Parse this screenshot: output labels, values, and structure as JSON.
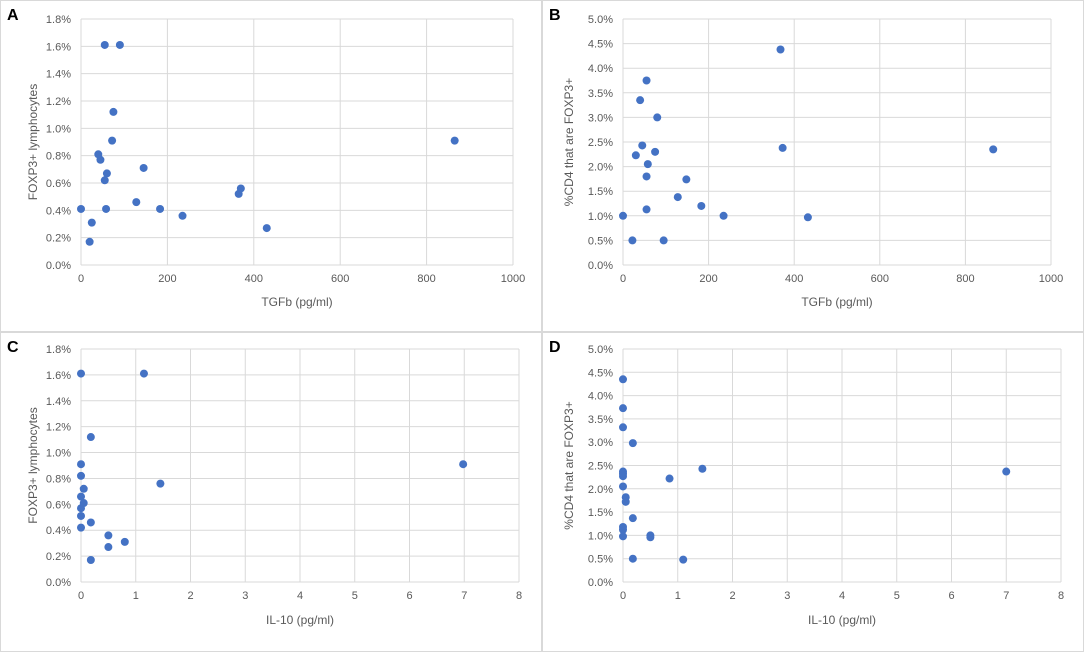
{
  "colors": {
    "marker": "#4472c4",
    "grid": "#d9d9d9",
    "text": "#595959"
  },
  "panels": [
    {
      "letter": "A"
    },
    {
      "letter": "B"
    },
    {
      "letter": "C"
    },
    {
      "letter": "D"
    }
  ],
  "chart_data": [
    {
      "type": "scatter",
      "panel": "A",
      "xlabel": "TGFb (pg/ml)",
      "ylabel": "FOXP3+ lymphocytes",
      "xlim": [
        0,
        1000
      ],
      "ylim": [
        0,
        1.8
      ],
      "xticks": [
        0,
        200,
        400,
        600,
        800,
        1000
      ],
      "xtick_labels": [
        "0",
        "200",
        "400",
        "600",
        "800",
        "1000"
      ],
      "yticks": [
        0,
        0.2,
        0.4,
        0.6,
        0.8,
        1.0,
        1.2,
        1.4,
        1.6,
        1.8
      ],
      "ytick_labels": [
        "0.0%",
        "0.2%",
        "0.4%",
        "0.6%",
        "0.8%",
        "1.0%",
        "1.2%",
        "1.4%",
        "1.6%",
        "1.8%"
      ],
      "points": [
        [
          0,
          0.41
        ],
        [
          20,
          0.17
        ],
        [
          25,
          0.31
        ],
        [
          40,
          0.81
        ],
        [
          45,
          0.77
        ],
        [
          55,
          1.61
        ],
        [
          55,
          0.62
        ],
        [
          58,
          0.41
        ],
        [
          60,
          0.67
        ],
        [
          72,
          0.91
        ],
        [
          75,
          1.12
        ],
        [
          90,
          1.61
        ],
        [
          128,
          0.46
        ],
        [
          145,
          0.71
        ],
        [
          183,
          0.41
        ],
        [
          235,
          0.36
        ],
        [
          365,
          0.52
        ],
        [
          370,
          0.56
        ],
        [
          430,
          0.27
        ],
        [
          865,
          0.91
        ]
      ]
    },
    {
      "type": "scatter",
      "panel": "B",
      "xlabel": "TGFb (pg/ml)",
      "ylabel": "%CD4 that are FOXP3+",
      "xlim": [
        0,
        1000
      ],
      "ylim": [
        0,
        5.0
      ],
      "xticks": [
        0,
        200,
        400,
        600,
        800,
        1000
      ],
      "xtick_labels": [
        "0",
        "200",
        "400",
        "600",
        "800",
        "1000"
      ],
      "yticks": [
        0,
        0.5,
        1.0,
        1.5,
        2.0,
        2.5,
        3.0,
        3.5,
        4.0,
        4.5,
        5.0
      ],
      "ytick_labels": [
        "0.0%",
        "0.5%",
        "1.0%",
        "1.5%",
        "2.0%",
        "2.5%",
        "3.0%",
        "3.5%",
        "4.0%",
        "4.5%",
        "5.0%"
      ],
      "points": [
        [
          0,
          1.0
        ],
        [
          22,
          0.5
        ],
        [
          30,
          2.23
        ],
        [
          40,
          3.35
        ],
        [
          45,
          2.43
        ],
        [
          55,
          3.75
        ],
        [
          55,
          1.8
        ],
        [
          55,
          1.13
        ],
        [
          58,
          2.05
        ],
        [
          75,
          2.3
        ],
        [
          80,
          3.0
        ],
        [
          95,
          0.5
        ],
        [
          128,
          1.38
        ],
        [
          148,
          1.74
        ],
        [
          183,
          1.2
        ],
        [
          235,
          1.0
        ],
        [
          368,
          4.38
        ],
        [
          373,
          2.38
        ],
        [
          432,
          0.97
        ],
        [
          865,
          2.35
        ]
      ]
    },
    {
      "type": "scatter",
      "panel": "C",
      "xlabel": "IL-10 (pg/ml)",
      "ylabel": "FOXP3+ lymphocytes",
      "xlim": [
        0,
        8
      ],
      "ylim": [
        0,
        1.8
      ],
      "xticks": [
        0,
        1,
        2,
        3,
        4,
        5,
        6,
        7,
        8
      ],
      "xtick_labels": [
        "0",
        "1",
        "2",
        "3",
        "4",
        "5",
        "6",
        "7",
        "8"
      ],
      "yticks": [
        0,
        0.2,
        0.4,
        0.6,
        0.8,
        1.0,
        1.2,
        1.4,
        1.6,
        1.8
      ],
      "ytick_labels": [
        "0.0%",
        "0.2%",
        "0.4%",
        "0.6%",
        "0.8%",
        "1.0%",
        "1.2%",
        "1.4%",
        "1.6%",
        "1.8%"
      ],
      "points": [
        [
          0,
          1.61
        ],
        [
          0,
          0.91
        ],
        [
          0,
          0.82
        ],
        [
          0,
          0.66
        ],
        [
          0,
          0.57
        ],
        [
          0,
          0.51
        ],
        [
          0,
          0.42
        ],
        [
          0.05,
          0.72
        ],
        [
          0.05,
          0.61
        ],
        [
          0.18,
          0.46
        ],
        [
          0.18,
          0.17
        ],
        [
          0.18,
          1.12
        ],
        [
          0.5,
          0.36
        ],
        [
          0.5,
          0.27
        ],
        [
          0.8,
          0.31
        ],
        [
          1.15,
          1.61
        ],
        [
          1.45,
          0.76
        ],
        [
          6.98,
          0.91
        ]
      ]
    },
    {
      "type": "scatter",
      "panel": "D",
      "xlabel": "IL-10 (pg/ml)",
      "ylabel": "%CD4 that are FOXP3+",
      "xlim": [
        0,
        8
      ],
      "ylim": [
        0,
        5.0
      ],
      "xticks": [
        0,
        1,
        2,
        3,
        4,
        5,
        6,
        7,
        8
      ],
      "xtick_labels": [
        "0",
        "1",
        "2",
        "3",
        "4",
        "5",
        "6",
        "7",
        "8"
      ],
      "yticks": [
        0,
        0.5,
        1.0,
        1.5,
        2.0,
        2.5,
        3.0,
        3.5,
        4.0,
        4.5,
        5.0
      ],
      "ytick_labels": [
        "0.0%",
        "0.5%",
        "1.0%",
        "1.5%",
        "2.0%",
        "2.5%",
        "3.0%",
        "3.5%",
        "4.0%",
        "4.5%",
        "5.0%"
      ],
      "points": [
        [
          0,
          4.35
        ],
        [
          0,
          3.73
        ],
        [
          0,
          3.32
        ],
        [
          0,
          2.37
        ],
        [
          0,
          2.32
        ],
        [
          0,
          2.27
        ],
        [
          0,
          2.05
        ],
        [
          0.05,
          1.82
        ],
        [
          0.05,
          1.72
        ],
        [
          0,
          1.18
        ],
        [
          0,
          1.12
        ],
        [
          0,
          0.98
        ],
        [
          0.18,
          2.98
        ],
        [
          0.18,
          1.37
        ],
        [
          0.18,
          0.5
        ],
        [
          0.5,
          1.0
        ],
        [
          0.5,
          0.96
        ],
        [
          0.85,
          2.22
        ],
        [
          1.1,
          0.48
        ],
        [
          1.45,
          2.43
        ],
        [
          7.0,
          2.37
        ]
      ]
    }
  ]
}
